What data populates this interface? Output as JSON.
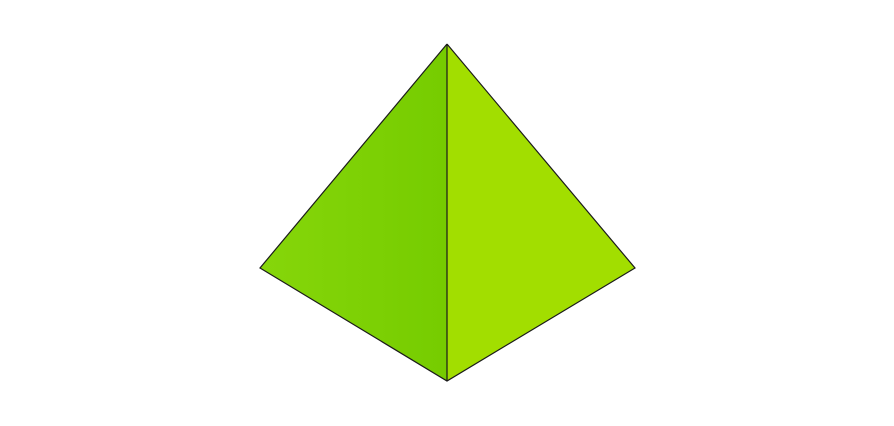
{
  "diagram": {
    "shape": "pyramid",
    "faces": [
      {
        "name": "left-face",
        "color": "#7ed000"
      },
      {
        "name": "right-face",
        "color": "#a2de00"
      }
    ],
    "edge_color": "#1a1a1a",
    "background": "#ffffff"
  }
}
